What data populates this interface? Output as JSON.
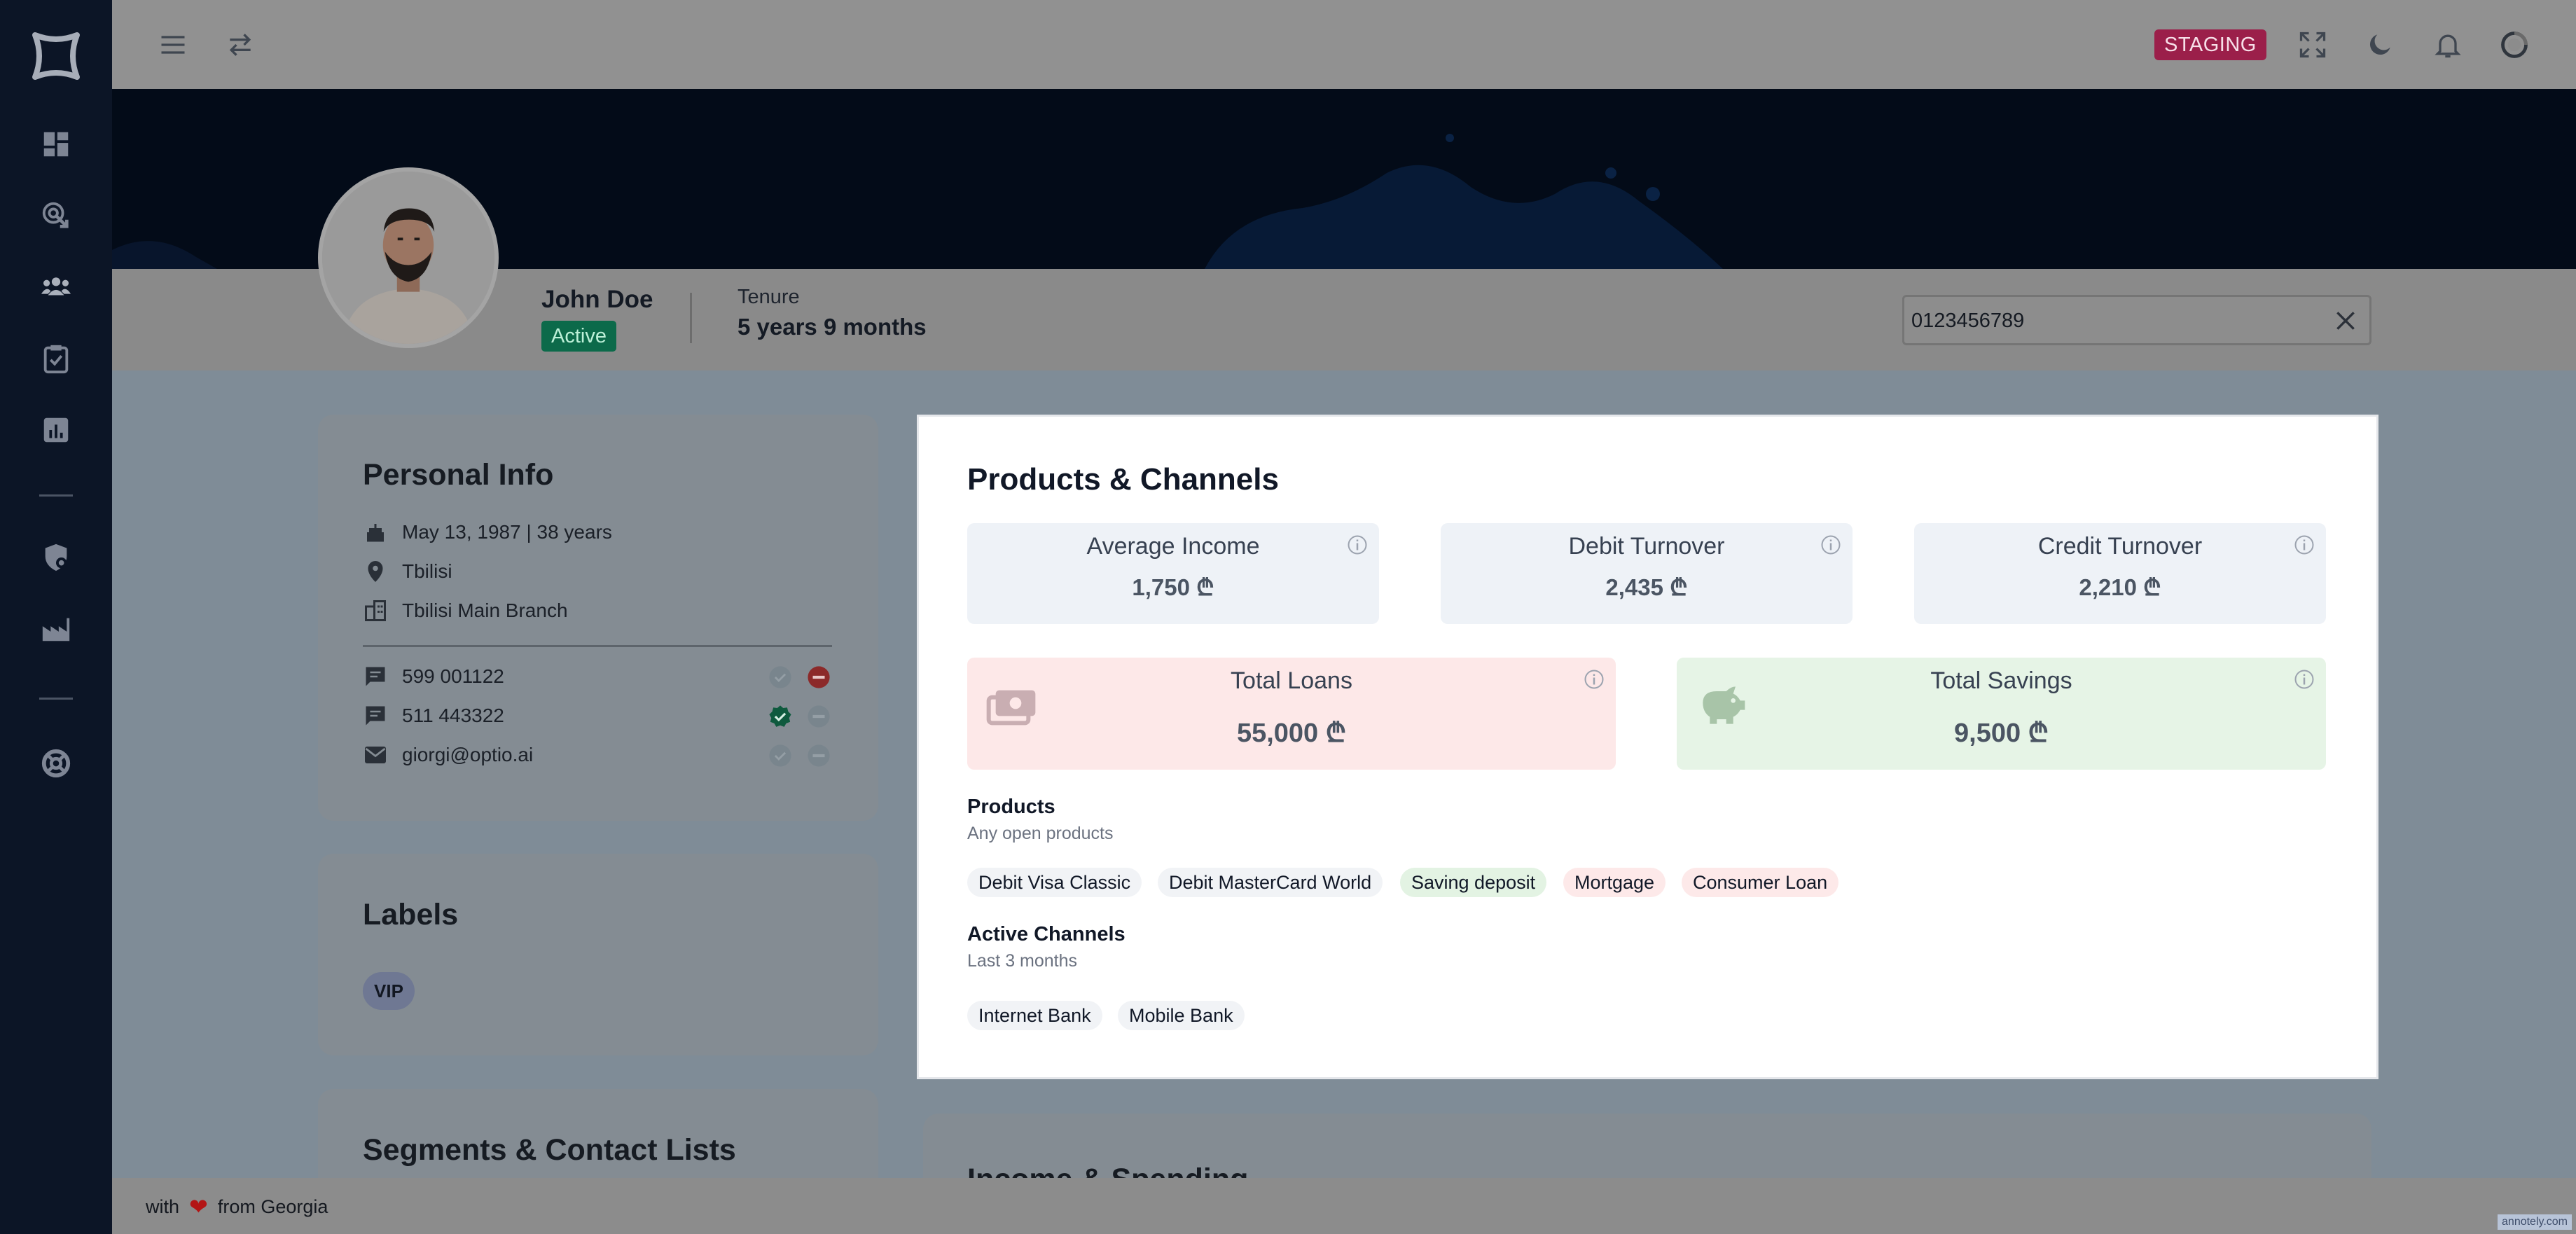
{
  "topbar": {
    "badge": "STAGING"
  },
  "profile": {
    "name": "John Doe",
    "status": "Active",
    "tenure_label": "Tenure",
    "tenure_value": "5 years 9 months",
    "search_value": "0123456789"
  },
  "personal_info": {
    "title": "Personal Info",
    "birth": "May 13, 1987 | 38 years",
    "city": "Tbilisi",
    "branch": "Tbilisi Main Branch",
    "contacts": [
      {
        "icon": "message-icon",
        "value": "599 001122",
        "verified": false,
        "blocked": true
      },
      {
        "icon": "message-icon",
        "value": "511 443322",
        "verified": true,
        "blocked": false
      },
      {
        "icon": "mail-icon",
        "value": "giorgi@optio.ai",
        "verified": false,
        "blocked": false
      }
    ]
  },
  "labels": {
    "title": "Labels",
    "items": [
      "VIP"
    ]
  },
  "segments": {
    "title": "Segments & Contact Lists"
  },
  "income_spending": {
    "title": "Income & Spending"
  },
  "modal": {
    "title": "Products & Channels",
    "stats": [
      {
        "label": "Average Income",
        "value": "1,750 ₾"
      },
      {
        "label": "Debit Turnover",
        "value": "2,435 ₾"
      },
      {
        "label": "Credit Turnover",
        "value": "2,210 ₾"
      }
    ],
    "loans": {
      "label": "Total Loans",
      "value": "55,000 ₾"
    },
    "savings": {
      "label": "Total Savings",
      "value": "9,500 ₾"
    },
    "products": {
      "title": "Products",
      "subtitle": "Any open products",
      "items": [
        "Debit Visa Classic",
        "Debit MasterCard World",
        "Saving deposit",
        "Mortgage",
        "Consumer Loan"
      ]
    },
    "channels": {
      "title": "Active Channels",
      "subtitle": "Last 3 months",
      "items": [
        "Internet Bank",
        "Mobile Bank"
      ]
    }
  },
  "footer": {
    "prefix": "with",
    "suffix": "from Georgia",
    "watermark": "annotely.com"
  },
  "colors": {
    "staging": "#9b1f4a",
    "active": "#0c6a4a",
    "loans_bg": "#fde8e8",
    "savings_bg": "#e6f4e6"
  }
}
